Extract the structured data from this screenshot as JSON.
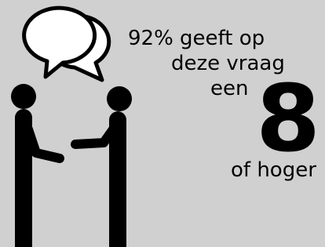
{
  "text": {
    "line1": "92% geeft op",
    "line2": "deze vraag",
    "line3": "een",
    "score": "8",
    "line4": "of hoger"
  }
}
